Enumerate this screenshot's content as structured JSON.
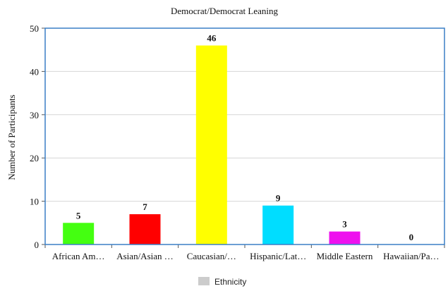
{
  "chart_data": {
    "type": "bar",
    "title": "Democrat/Democrat Leaning",
    "xlabel": "",
    "ylabel": "Number of Participants",
    "categories": [
      "African Am…",
      "Asian/Asian …",
      "Caucasian/…",
      "Hispanic/Lat…",
      "Middle Eastern",
      "Hawaiian/Pa…"
    ],
    "values": [
      5,
      7,
      46,
      9,
      3,
      0
    ],
    "value_labels": [
      "5",
      "7",
      "46",
      "9",
      "3",
      "0"
    ],
    "colors": [
      "#44ff11",
      "#ff0000",
      "#ffff00",
      "#00ddff",
      "#ee11ee",
      "#888888"
    ],
    "ylim": [
      0,
      50
    ],
    "yticks": [
      0,
      10,
      20,
      30,
      40,
      50
    ],
    "ytick_labels": [
      "0",
      "10",
      "20",
      "30",
      "40",
      "50"
    ],
    "grid": true,
    "legend": {
      "position": "bottom",
      "entries": [
        {
          "label": "Ethnicity",
          "color": "#cccccc"
        }
      ]
    },
    "frame_color": "#3a7fc6"
  }
}
